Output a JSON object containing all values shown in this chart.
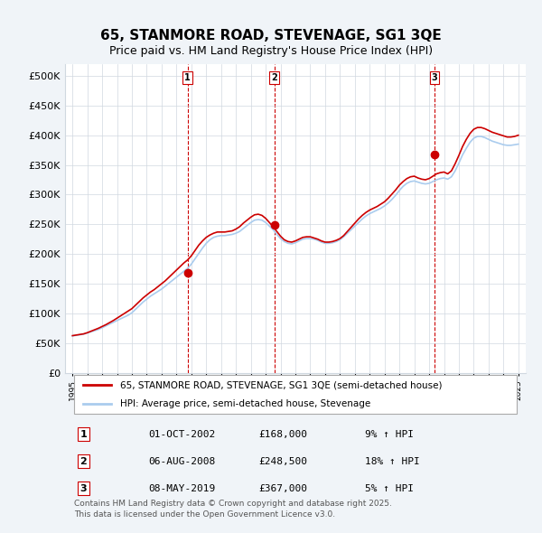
{
  "title": "65, STANMORE ROAD, STEVENAGE, SG1 3QE",
  "subtitle": "Price paid vs. HM Land Registry's House Price Index (HPI)",
  "ylabel": "",
  "ylim": [
    0,
    520000
  ],
  "yticks": [
    0,
    50000,
    100000,
    150000,
    200000,
    250000,
    300000,
    350000,
    400000,
    450000,
    500000
  ],
  "ytick_labels": [
    "£0",
    "£50K",
    "£100K",
    "£150K",
    "£200K",
    "£250K",
    "£300K",
    "£350K",
    "£400K",
    "£450K",
    "£500K"
  ],
  "bg_color": "#f0f4f8",
  "plot_bg": "#ffffff",
  "grid_color": "#d0d8e0",
  "red_color": "#cc0000",
  "blue_color": "#aaccee",
  "sale_marker_color": "#cc0000",
  "vline_color": "#cc0000",
  "sale_dates": [
    2002.75,
    2008.58,
    2019.35
  ],
  "sale_prices": [
    168000,
    248500,
    367000
  ],
  "sale_labels": [
    "1",
    "2",
    "3"
  ],
  "legend_red_label": "65, STANMORE ROAD, STEVENAGE, SG1 3QE (semi-detached house)",
  "legend_blue_label": "HPI: Average price, semi-detached house, Stevenage",
  "table_data": [
    [
      "1",
      "01-OCT-2002",
      "£168,000",
      "9% ↑ HPI"
    ],
    [
      "2",
      "06-AUG-2008",
      "£248,500",
      "18% ↑ HPI"
    ],
    [
      "3",
      "08-MAY-2019",
      "£367,000",
      "5% ↑ HPI"
    ]
  ],
  "footer_text": "Contains HM Land Registry data © Crown copyright and database right 2025.\nThis data is licensed under the Open Government Licence v3.0.",
  "hpi_years": [
    1995.0,
    1995.25,
    1995.5,
    1995.75,
    1996.0,
    1996.25,
    1996.5,
    1996.75,
    1997.0,
    1997.25,
    1997.5,
    1997.75,
    1998.0,
    1998.25,
    1998.5,
    1998.75,
    1999.0,
    1999.25,
    1999.5,
    1999.75,
    2000.0,
    2000.25,
    2000.5,
    2000.75,
    2001.0,
    2001.25,
    2001.5,
    2001.75,
    2002.0,
    2002.25,
    2002.5,
    2002.75,
    2003.0,
    2003.25,
    2003.5,
    2003.75,
    2004.0,
    2004.25,
    2004.5,
    2004.75,
    2005.0,
    2005.25,
    2005.5,
    2005.75,
    2006.0,
    2006.25,
    2006.5,
    2006.75,
    2007.0,
    2007.25,
    2007.5,
    2007.75,
    2008.0,
    2008.25,
    2008.5,
    2008.75,
    2009.0,
    2009.25,
    2009.5,
    2009.75,
    2010.0,
    2010.25,
    2010.5,
    2010.75,
    2011.0,
    2011.25,
    2011.5,
    2011.75,
    2012.0,
    2012.25,
    2012.5,
    2012.75,
    2013.0,
    2013.25,
    2013.5,
    2013.75,
    2014.0,
    2014.25,
    2014.5,
    2014.75,
    2015.0,
    2015.25,
    2015.5,
    2015.75,
    2016.0,
    2016.25,
    2016.5,
    2016.75,
    2017.0,
    2017.25,
    2017.5,
    2017.75,
    2018.0,
    2018.25,
    2018.5,
    2018.75,
    2019.0,
    2019.25,
    2019.5,
    2019.75,
    2020.0,
    2020.25,
    2020.5,
    2020.75,
    2021.0,
    2021.25,
    2021.5,
    2021.75,
    2022.0,
    2022.25,
    2022.5,
    2022.75,
    2023.0,
    2023.25,
    2023.5,
    2023.75,
    2024.0,
    2024.25,
    2024.5,
    2024.75,
    2025.0
  ],
  "hpi_values": [
    62000,
    63000,
    64000,
    65000,
    67000,
    69000,
    71000,
    73000,
    76000,
    79000,
    82000,
    85000,
    88000,
    91000,
    94000,
    97000,
    101000,
    107000,
    113000,
    119000,
    124000,
    129000,
    133000,
    137000,
    141000,
    146000,
    151000,
    156000,
    161000,
    166000,
    171000,
    176000,
    183000,
    192000,
    201000,
    210000,
    218000,
    224000,
    228000,
    230000,
    231000,
    231000,
    232000,
    233000,
    235000,
    238000,
    243000,
    248000,
    253000,
    257000,
    258000,
    257000,
    253000,
    247000,
    241000,
    233000,
    226000,
    221000,
    218000,
    217000,
    219000,
    222000,
    225000,
    226000,
    226000,
    225000,
    223000,
    220000,
    218000,
    218000,
    219000,
    221000,
    224000,
    229000,
    235000,
    241000,
    247000,
    253000,
    259000,
    264000,
    268000,
    271000,
    274000,
    277000,
    281000,
    286000,
    292000,
    299000,
    307000,
    314000,
    319000,
    322000,
    323000,
    321000,
    319000,
    318000,
    319000,
    322000,
    325000,
    327000,
    328000,
    326000,
    330000,
    340000,
    353000,
    367000,
    378000,
    388000,
    395000,
    398000,
    398000,
    396000,
    393000,
    390000,
    388000,
    386000,
    384000,
    383000,
    383000,
    384000,
    385000
  ],
  "red_values": [
    62500,
    63500,
    64500,
    65500,
    67500,
    70000,
    72500,
    75000,
    78000,
    81000,
    84500,
    88000,
    92000,
    96000,
    100000,
    104000,
    108000,
    114000,
    120000,
    126000,
    131000,
    136000,
    140000,
    145000,
    150000,
    155000,
    161000,
    167000,
    173000,
    179000,
    185000,
    190000,
    197000,
    206000,
    215000,
    222000,
    228000,
    232000,
    235000,
    237000,
    237000,
    237000,
    238000,
    239000,
    242000,
    246000,
    252000,
    257000,
    262000,
    266000,
    267000,
    265000,
    260000,
    253000,
    246000,
    238000,
    230000,
    224000,
    221000,
    220000,
    222000,
    225000,
    228000,
    229000,
    229000,
    227000,
    225000,
    222000,
    220000,
    220000,
    221000,
    223000,
    226000,
    231000,
    238000,
    245000,
    252000,
    259000,
    265000,
    270000,
    274000,
    277000,
    280000,
    284000,
    288000,
    294000,
    301000,
    308000,
    316000,
    322000,
    327000,
    330000,
    331000,
    328000,
    326000,
    325000,
    327000,
    331000,
    335000,
    337000,
    338000,
    335000,
    340000,
    352000,
    366000,
    381000,
    393000,
    403000,
    410000,
    413000,
    413000,
    411000,
    408000,
    405000,
    403000,
    401000,
    399000,
    397000,
    397000,
    398000,
    400000
  ]
}
